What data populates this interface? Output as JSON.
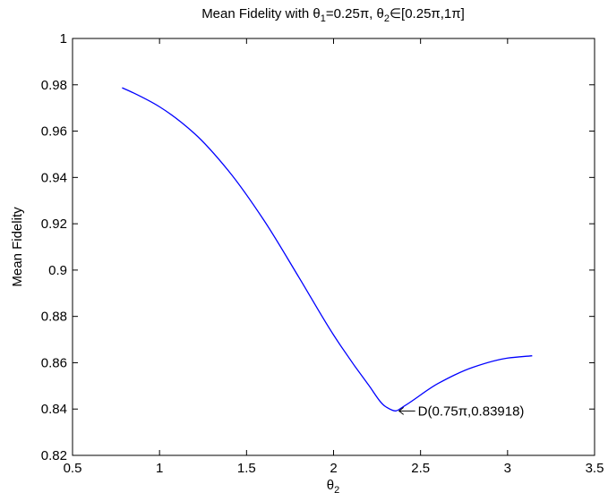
{
  "chart_data": {
    "type": "line",
    "title": {
      "prefix": "Mean Fidelity with θ",
      "sub1": "1",
      "mid": "=0.25π, θ",
      "sub2": "2",
      "suffix": "∈[0.25π,1π]"
    },
    "xlabel": {
      "base": "θ",
      "sub": "2"
    },
    "ylabel": "Mean Fidelity",
    "xlim": [
      0.5,
      3.5
    ],
    "ylim": [
      0.82,
      1.0
    ],
    "xticks": [
      0.5,
      1,
      1.5,
      2,
      2.5,
      3,
      3.5
    ],
    "xtick_labels": [
      "0.5",
      "1",
      "1.5",
      "2",
      "2.5",
      "3",
      "3.5"
    ],
    "yticks": [
      0.82,
      0.84,
      0.86,
      0.88,
      0.9,
      0.92,
      0.94,
      0.96,
      0.98,
      1.0
    ],
    "ytick_labels": [
      "0.82",
      "0.84",
      "0.86",
      "0.88",
      "0.9",
      "0.92",
      "0.94",
      "0.96",
      "0.98",
      "1"
    ],
    "grid": false,
    "series": [
      {
        "color": "#0000ff",
        "x": [
          0.785,
          0.85,
          1.0,
          1.2,
          1.4,
          1.6,
          1.8,
          2.0,
          2.2,
          2.3,
          2.356,
          2.4,
          2.6,
          2.8,
          3.0,
          3.1416
        ],
        "y": [
          0.9787,
          0.9765,
          0.9705,
          0.959,
          0.9425,
          0.9215,
          0.897,
          0.872,
          0.8505,
          0.841,
          0.8392,
          0.841,
          0.851,
          0.858,
          0.862,
          0.863
        ]
      }
    ],
    "annotation": {
      "text": "D(0.75π,0.83918)",
      "point": [
        2.356,
        0.83918
      ]
    }
  }
}
